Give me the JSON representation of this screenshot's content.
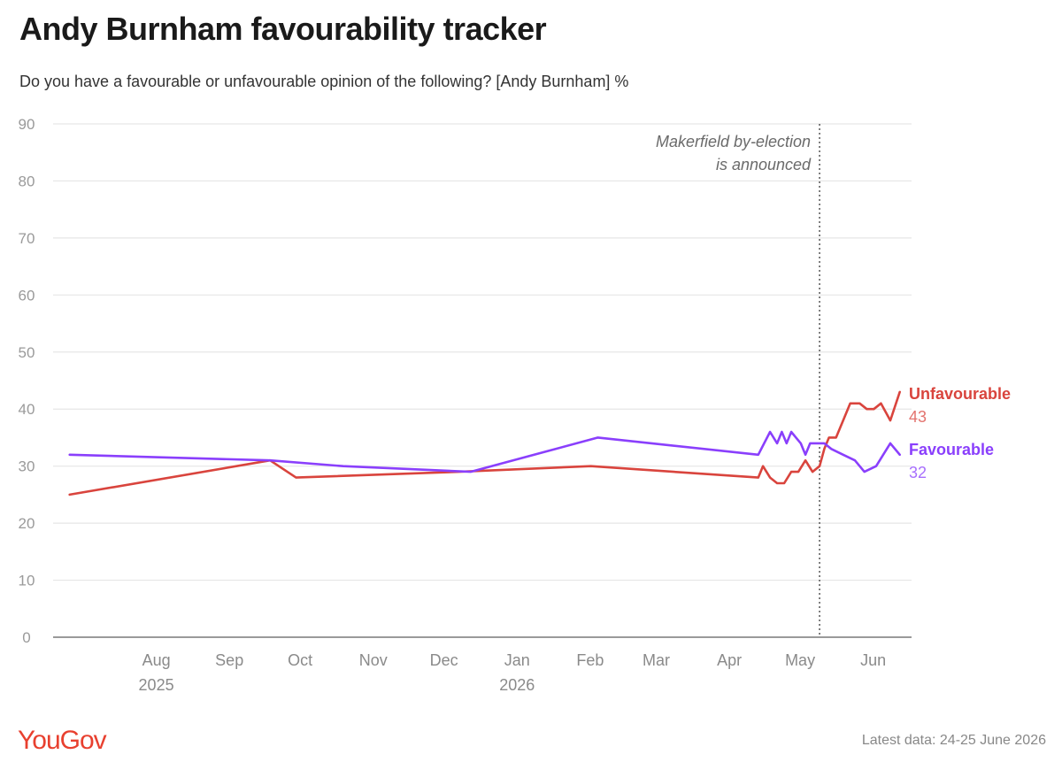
{
  "title": "Andy Burnham favourability tracker",
  "subtitle": "Do you have a favourable or unfavourable opinion of the following? [Andy Burnham] %",
  "footer": {
    "brand": "YouGov",
    "latest_data": "Latest data: 24-25 June 2026"
  },
  "colors": {
    "unfavourable": "#d9443d",
    "favourable": "#8a3ffc",
    "grid": "#e6e6e6",
    "brand": "#e8402f"
  },
  "chart_data": {
    "type": "line",
    "xlim": [
      "2025-07-01",
      "2026-06-30"
    ],
    "ylim": [
      0,
      90
    ],
    "y_ticks": [
      0,
      10,
      20,
      30,
      40,
      50,
      60,
      70,
      80,
      90
    ],
    "grid": true,
    "x_ticks": [
      {
        "date": "2025-08-01",
        "label": "Aug",
        "sub": "2025"
      },
      {
        "date": "2025-09-01",
        "label": "Sep",
        "sub": ""
      },
      {
        "date": "2025-10-01",
        "label": "Oct",
        "sub": ""
      },
      {
        "date": "2025-11-01",
        "label": "Nov",
        "sub": ""
      },
      {
        "date": "2025-12-01",
        "label": "Dec",
        "sub": ""
      },
      {
        "date": "2026-01-01",
        "label": "Jan",
        "sub": "2026"
      },
      {
        "date": "2026-02-01",
        "label": "Feb",
        "sub": ""
      },
      {
        "date": "2026-03-01",
        "label": "Mar",
        "sub": ""
      },
      {
        "date": "2026-04-01",
        "label": "Apr",
        "sub": ""
      },
      {
        "date": "2026-05-01",
        "label": "May",
        "sub": ""
      },
      {
        "date": "2026-06-01",
        "label": "Jun",
        "sub": ""
      }
    ],
    "annotation": {
      "date": "2026-05-22",
      "lines": [
        "Makerfield by-election",
        "is announced"
      ]
    },
    "series": [
      {
        "name": "Unfavourable",
        "color_key": "unfavourable",
        "end_value": "43",
        "points": [
          [
            "2025-07-08",
            25
          ],
          [
            "2025-10-01",
            31
          ],
          [
            "2025-10-12",
            28
          ],
          [
            "2025-12-20",
            29
          ],
          [
            "2026-02-14",
            30
          ],
          [
            "2026-04-26",
            28
          ],
          [
            "2026-04-28",
            30
          ],
          [
            "2026-05-01",
            28
          ],
          [
            "2026-05-04",
            27
          ],
          [
            "2026-05-07",
            27
          ],
          [
            "2026-05-10",
            29
          ],
          [
            "2026-05-13",
            29
          ],
          [
            "2026-05-16",
            31
          ],
          [
            "2026-05-19",
            29
          ],
          [
            "2026-05-22",
            30
          ],
          [
            "2026-05-24",
            33
          ],
          [
            "2026-05-26",
            35
          ],
          [
            "2026-05-29",
            35
          ],
          [
            "2026-06-01",
            38
          ],
          [
            "2026-06-04",
            41
          ],
          [
            "2026-06-08",
            41
          ],
          [
            "2026-06-11",
            40
          ],
          [
            "2026-06-14",
            40
          ],
          [
            "2026-06-17",
            41
          ],
          [
            "2026-06-21",
            38
          ],
          [
            "2026-06-25",
            43
          ]
        ]
      },
      {
        "name": "Favourable",
        "color_key": "favourable",
        "end_value": "32",
        "points": [
          [
            "2025-07-08",
            32
          ],
          [
            "2025-10-01",
            31
          ],
          [
            "2025-11-01",
            30
          ],
          [
            "2025-12-25",
            29
          ],
          [
            "2026-02-17",
            35
          ],
          [
            "2026-04-26",
            32
          ],
          [
            "2026-05-01",
            36
          ],
          [
            "2026-05-04",
            34
          ],
          [
            "2026-05-06",
            36
          ],
          [
            "2026-05-08",
            34
          ],
          [
            "2026-05-10",
            36
          ],
          [
            "2026-05-12",
            35
          ],
          [
            "2026-05-14",
            34
          ],
          [
            "2026-05-16",
            32
          ],
          [
            "2026-05-18",
            34
          ],
          [
            "2026-05-21",
            34
          ],
          [
            "2026-05-24",
            34
          ],
          [
            "2026-05-27",
            33
          ],
          [
            "2026-06-01",
            32
          ],
          [
            "2026-06-06",
            31
          ],
          [
            "2026-06-10",
            29
          ],
          [
            "2026-06-15",
            30
          ],
          [
            "2026-06-21",
            34
          ],
          [
            "2026-06-25",
            32
          ]
        ]
      }
    ]
  }
}
